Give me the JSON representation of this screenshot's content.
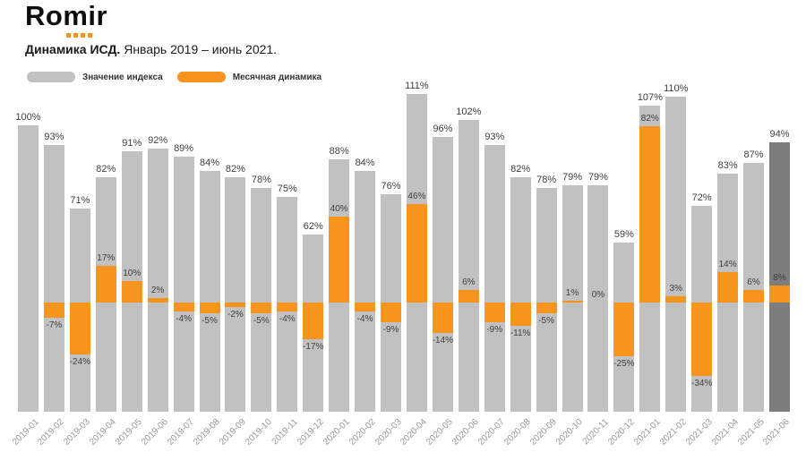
{
  "logo": {
    "text": "Romir"
  },
  "header": {
    "title_bold": "Динамика ИСД.",
    "title_rest": " Январь 2019 – июнь 2021."
  },
  "legend": [
    {
      "label": "Значение индекса",
      "color": "#c1c1c1"
    },
    {
      "label": "Месячная динамика",
      "color": "#F7941D"
    }
  ],
  "chart_data": {
    "type": "bar",
    "title": "Динамика ИСД. Январь 2019 – июнь 2021.",
    "xlabel": "",
    "ylabel": "",
    "grid": false,
    "legend_position": "top-left",
    "categories": [
      "2019-01",
      "2019-02",
      "2019-03",
      "2019-04",
      "2019-05",
      "2019-06",
      "2019-07",
      "2019-08",
      "2019-09",
      "2019-10",
      "2019-11",
      "2019-12",
      "2020-01",
      "2020-02",
      "2020-03",
      "2020-04",
      "2020-05",
      "2020-06",
      "2020-07",
      "2020-08",
      "2020-09",
      "2020-10",
      "2020-11",
      "2020-12",
      "2021-01",
      "2021-02",
      "2021-03",
      "2021-04",
      "2021-05",
      "2021-06"
    ],
    "series": [
      {
        "name": "Значение индекса",
        "unit": "%",
        "values": [
          100,
          93,
          71,
          82,
          91,
          92,
          89,
          84,
          82,
          78,
          75,
          62,
          88,
          84,
          76,
          111,
          96,
          102,
          93,
          82,
          78,
          79,
          79,
          59,
          107,
          110,
          72,
          83,
          87,
          94
        ]
      },
      {
        "name": "Месячная динамика",
        "unit": "%",
        "values": [
          null,
          -7,
          -24,
          17,
          10,
          2,
          -4,
          -5,
          -2,
          -5,
          -4,
          -17,
          40,
          -4,
          -9,
          46,
          -14,
          6,
          -9,
          -11,
          -5,
          1,
          0,
          -25,
          82,
          3,
          -34,
          14,
          6,
          8
        ]
      }
    ],
    "highlight_last": true,
    "colors": {
      "index": "#c1c1c1",
      "index_highlight": "#7d7d7d",
      "dynamics": "#F7941D"
    }
  }
}
